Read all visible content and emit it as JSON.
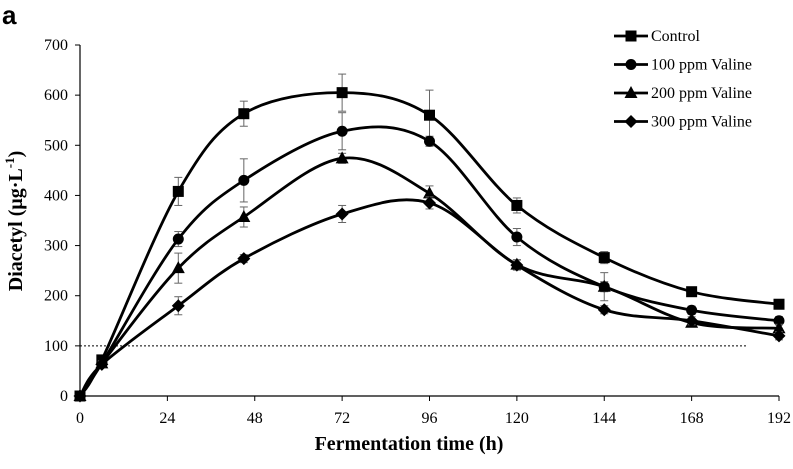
{
  "panel_label": "a",
  "chart_data": {
    "type": "line",
    "title": "",
    "xlabel": "Fermentation time (h)",
    "ylabel_main": "Diacetyl (μg·L",
    "ylabel_exp": "-1",
    "ylabel_close": ")",
    "xlim": [
      0,
      192
    ],
    "ylim": [
      0,
      700
    ],
    "xticks": [
      0,
      24,
      48,
      72,
      96,
      120,
      144,
      168,
      192
    ],
    "yticks": [
      0,
      100,
      200,
      300,
      400,
      500,
      600,
      700
    ],
    "threshold": 100,
    "grid": false,
    "legend_position": "top-right",
    "series": [
      {
        "name": "Control",
        "marker": "square",
        "x": [
          0,
          6,
          27,
          45,
          72,
          96,
          120,
          144,
          168,
          192
        ],
        "y": [
          0,
          72,
          408,
          563,
          605,
          560,
          380,
          276,
          208,
          183
        ],
        "err": [
          0,
          5,
          28,
          25,
          37,
          50,
          15,
          12,
          8,
          8
        ]
      },
      {
        "name": "100 ppm Valine",
        "marker": "circle",
        "x": [
          0,
          6,
          27,
          45,
          72,
          96,
          120,
          144,
          168,
          192
        ],
        "y": [
          0,
          65,
          313,
          430,
          528,
          508,
          317,
          218,
          171,
          150
        ],
        "err": [
          0,
          5,
          15,
          43,
          37,
          10,
          17,
          28,
          8,
          8
        ]
      },
      {
        "name": "200 ppm Valine",
        "marker": "triangle",
        "x": [
          0,
          6,
          27,
          45,
          72,
          96,
          120,
          144,
          168,
          192
        ],
        "y": [
          0,
          65,
          255,
          357,
          474,
          404,
          262,
          218,
          146,
          135
        ],
        "err": [
          0,
          5,
          30,
          20,
          10,
          15,
          10,
          10,
          8,
          8
        ]
      },
      {
        "name": "300 ppm Valine",
        "marker": "diamond",
        "x": [
          0,
          6,
          27,
          45,
          72,
          96,
          120,
          144,
          168,
          192
        ],
        "y": [
          0,
          63,
          180,
          274,
          363,
          385,
          261,
          172,
          150,
          120
        ],
        "err": [
          0,
          5,
          18,
          8,
          17,
          12,
          10,
          8,
          8,
          8
        ]
      }
    ]
  }
}
